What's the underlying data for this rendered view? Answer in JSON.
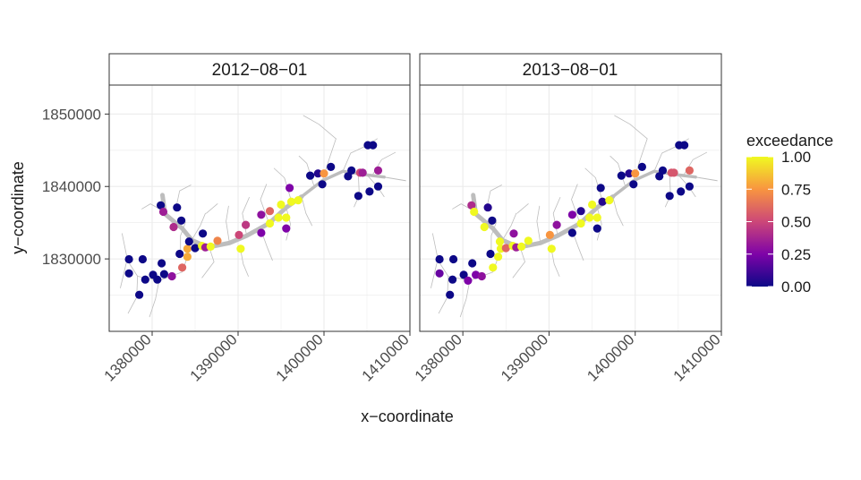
{
  "chart_data": {
    "type": "scatter",
    "facet_variable": "date",
    "xlabel": "x−coordinate",
    "ylabel": "y−coordinate",
    "xlim": [
      1375000,
      1410000
    ],
    "ylim": [
      1820000,
      1854000
    ],
    "x_ticks": [
      1380000,
      1390000,
      1400000,
      1410000
    ],
    "x_tick_labels": [
      "1380000",
      "1390000",
      "1400000",
      "1410000"
    ],
    "y_ticks": [
      1830000,
      1840000,
      1850000
    ],
    "y_tick_labels": [
      "1830000",
      "1840000",
      "1850000"
    ],
    "grid": true,
    "colorbar": {
      "title": "exceedance",
      "colormap": "plasma",
      "range": [
        0,
        1
      ],
      "ticks": [
        0,
        0.25,
        0.5,
        0.75,
        1
      ],
      "tick_labels": [
        "0.00",
        "0.25",
        "0.50",
        "0.75",
        "1.00"
      ],
      "position": "right"
    },
    "panels": [
      {
        "label": "2012−08−01",
        "points": [
          [
            1377300,
            1829950,
            0.0
          ],
          [
            1378900,
            1829950,
            0.0
          ],
          [
            1377300,
            1828000,
            0.0
          ],
          [
            1379200,
            1827150,
            0.0
          ],
          [
            1380100,
            1827800,
            0.0
          ],
          [
            1380600,
            1827150,
            0.0
          ],
          [
            1381400,
            1827900,
            0.0
          ],
          [
            1382300,
            1827600,
            0.3
          ],
          [
            1378500,
            1825050,
            0.0
          ],
          [
            1381100,
            1829400,
            0.0
          ],
          [
            1383200,
            1830700,
            0.0
          ],
          [
            1383500,
            1828800,
            0.6
          ],
          [
            1384100,
            1830300,
            0.8
          ],
          [
            1384100,
            1831400,
            0.8
          ],
          [
            1384300,
            1832400,
            0.0
          ],
          [
            1385000,
            1831500,
            0.0
          ],
          [
            1385800,
            1831800,
            1.0
          ],
          [
            1386200,
            1831600,
            0.35
          ],
          [
            1386800,
            1831700,
            1.0
          ],
          [
            1387600,
            1832500,
            0.7
          ],
          [
            1385900,
            1833500,
            0.0
          ],
          [
            1390300,
            1831400,
            1.0
          ],
          [
            1390100,
            1833300,
            0.5
          ],
          [
            1390900,
            1834700,
            0.45
          ],
          [
            1392700,
            1833600,
            0.25
          ],
          [
            1393700,
            1834900,
            1.0
          ],
          [
            1392700,
            1836100,
            0.3
          ],
          [
            1393700,
            1836600,
            0.6
          ],
          [
            1395600,
            1834200,
            0.25
          ],
          [
            1394700,
            1835700,
            1.0
          ],
          [
            1395600,
            1835700,
            1.0
          ],
          [
            1395000,
            1837500,
            1.0
          ],
          [
            1396200,
            1837900,
            1.0
          ],
          [
            1397000,
            1838100,
            1.0
          ],
          [
            1396000,
            1839800,
            0.25
          ],
          [
            1381000,
            1837400,
            0.0
          ],
          [
            1381300,
            1836500,
            0.35
          ],
          [
            1382900,
            1837100,
            0.0
          ],
          [
            1383400,
            1835300,
            0.0
          ],
          [
            1382500,
            1834400,
            0.4
          ],
          [
            1398400,
            1841500,
            0.0
          ],
          [
            1399300,
            1841800,
            0.05
          ],
          [
            1400000,
            1841800,
            0.75
          ],
          [
            1399800,
            1840300,
            0.0
          ],
          [
            1400800,
            1842700,
            0.0
          ],
          [
            1403200,
            1842200,
            0.0
          ],
          [
            1402800,
            1841400,
            0.0
          ],
          [
            1404200,
            1841900,
            0.5
          ],
          [
            1404500,
            1841900,
            0.35
          ],
          [
            1406300,
            1842200,
            0.35
          ],
          [
            1404000,
            1838700,
            0.0
          ],
          [
            1405300,
            1839300,
            0.0
          ],
          [
            1406300,
            1840000,
            0.0
          ],
          [
            1405100,
            1845700,
            0.0
          ],
          [
            1405700,
            1845700,
            0.0
          ]
        ]
      },
      {
        "label": "2013−08−01",
        "points": [
          [
            1377300,
            1829950,
            0.0
          ],
          [
            1378900,
            1829950,
            0.0
          ],
          [
            1377300,
            1828000,
            0.2
          ],
          [
            1378800,
            1827150,
            0.0
          ],
          [
            1380100,
            1827800,
            0.0
          ],
          [
            1380600,
            1827000,
            0.25
          ],
          [
            1381500,
            1827800,
            0.25
          ],
          [
            1382200,
            1827600,
            0.3
          ],
          [
            1378500,
            1825050,
            0.0
          ],
          [
            1381100,
            1829400,
            0.0
          ],
          [
            1383200,
            1830700,
            0.0
          ],
          [
            1383500,
            1828800,
            1.0
          ],
          [
            1384100,
            1830300,
            1.0
          ],
          [
            1384400,
            1831400,
            1.0
          ],
          [
            1384300,
            1832400,
            1.0
          ],
          [
            1385000,
            1831500,
            0.6
          ],
          [
            1385800,
            1831800,
            1.0
          ],
          [
            1386200,
            1831600,
            0.35
          ],
          [
            1386800,
            1831700,
            1.0
          ],
          [
            1387600,
            1832500,
            1.0
          ],
          [
            1385900,
            1833500,
            0.3
          ],
          [
            1390300,
            1831400,
            1.0
          ],
          [
            1390100,
            1833300,
            0.75
          ],
          [
            1390900,
            1834700,
            0.3
          ],
          [
            1392700,
            1833600,
            0.0
          ],
          [
            1393700,
            1834900,
            1.0
          ],
          [
            1392700,
            1836100,
            0.25
          ],
          [
            1393700,
            1836600,
            0.05
          ],
          [
            1395600,
            1834200,
            0.0
          ],
          [
            1394700,
            1835700,
            1.0
          ],
          [
            1395600,
            1835700,
            1.0
          ],
          [
            1395000,
            1837500,
            1.0
          ],
          [
            1396200,
            1837900,
            0.05
          ],
          [
            1397000,
            1838100,
            1.0
          ],
          [
            1396000,
            1839800,
            0.0
          ],
          [
            1381000,
            1837400,
            0.4
          ],
          [
            1381300,
            1836500,
            1.0
          ],
          [
            1382900,
            1837100,
            0.05
          ],
          [
            1383400,
            1835300,
            0.0
          ],
          [
            1382500,
            1834400,
            1.0
          ],
          [
            1398400,
            1841500,
            0.0
          ],
          [
            1399300,
            1841800,
            0.05
          ],
          [
            1400000,
            1841800,
            0.75
          ],
          [
            1399800,
            1840300,
            0.0
          ],
          [
            1400800,
            1842700,
            0.0
          ],
          [
            1403200,
            1842200,
            0.0
          ],
          [
            1402800,
            1841400,
            0.0
          ],
          [
            1404200,
            1841900,
            0.55
          ],
          [
            1404500,
            1841900,
            0.55
          ],
          [
            1406300,
            1842200,
            0.6
          ],
          [
            1404000,
            1838700,
            0.0
          ],
          [
            1405300,
            1839300,
            0.0
          ],
          [
            1406300,
            1840000,
            0.0
          ],
          [
            1405100,
            1845700,
            0.0
          ],
          [
            1405700,
            1845700,
            0.0
          ]
        ]
      }
    ]
  }
}
